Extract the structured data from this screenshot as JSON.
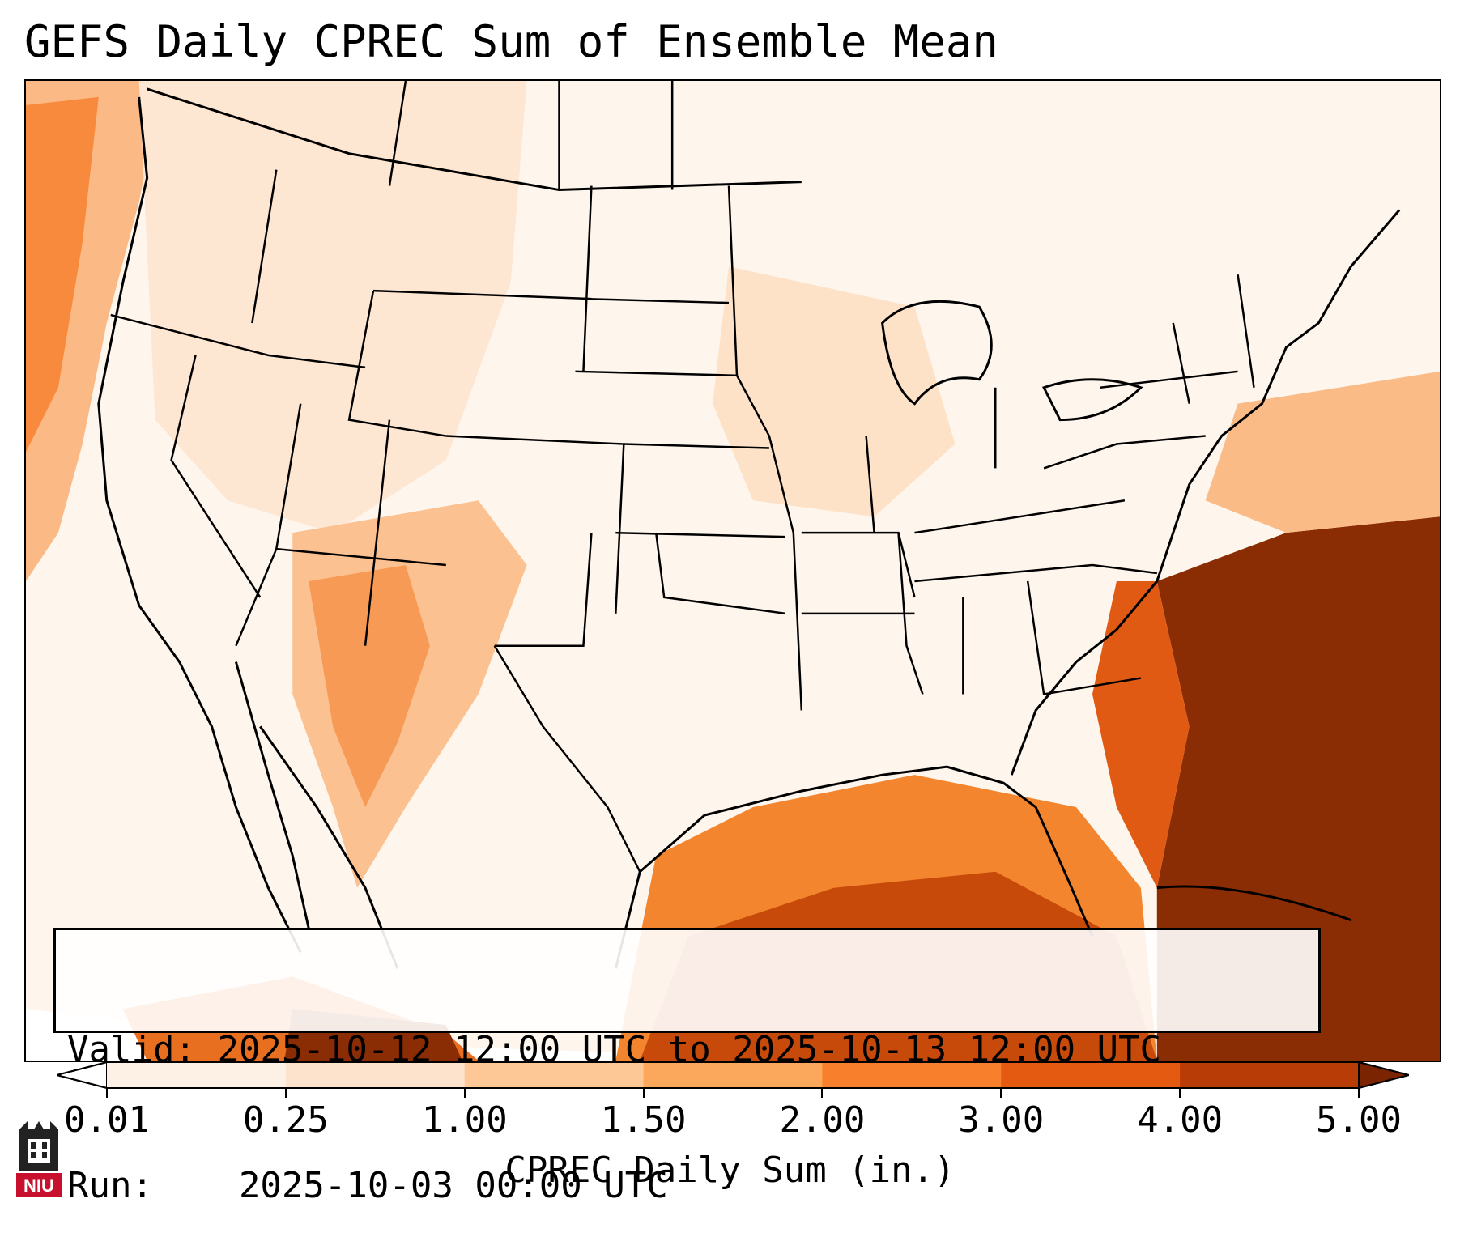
{
  "title": "GEFS Daily CPREC Sum of Ensemble Mean",
  "info": {
    "valid_label": "Valid:",
    "valid_value": "2025-10-12 12:00 UTC to 2025-10-13 12:00 UTC",
    "run_label": "Run:",
    "run_value": "2025-10-03 00:00 UTC"
  },
  "colorbar": {
    "label": "CPREC Daily Sum (in.)",
    "ticks": [
      "0.01",
      "0.25",
      "1.00",
      "1.50",
      "2.00",
      "3.00",
      "4.00",
      "5.00"
    ],
    "colors": [
      "#fdf1e5",
      "#fde3cc",
      "#fdc895",
      "#fca85c",
      "#f8802d",
      "#e45a11",
      "#b83c06",
      "#8a2c04"
    ],
    "under_color": "#ffffff",
    "over_color": "#7a2402"
  },
  "logo": {
    "text": "NIU",
    "icon": "niu-logo-icon"
  }
}
